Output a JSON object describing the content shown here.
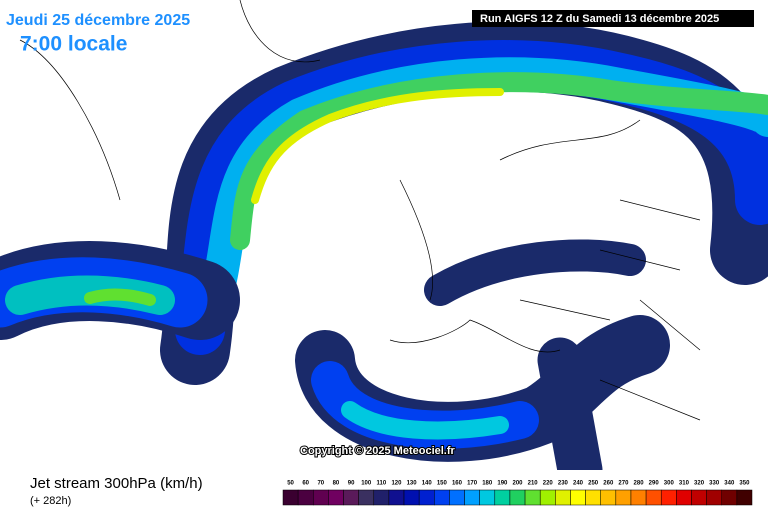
{
  "header": {
    "date": "Jeudi 25 décembre 2025",
    "time": "7:00 locale",
    "run": "Run AIGFS 12 Z du Samedi 13 décembre 2025"
  },
  "map": {
    "copyright": "Copyright © 2025 Meteociel.fr"
  },
  "footer": {
    "title": "Jet stream 300hPa (km/h)",
    "lead": "(+ 282h)"
  },
  "legend": {
    "labels": [
      50,
      60,
      70,
      80,
      90,
      100,
      110,
      120,
      130,
      140,
      150,
      160,
      170,
      180,
      190,
      200,
      210,
      220,
      230,
      240,
      250,
      260,
      270,
      280,
      290,
      300,
      310,
      320,
      330,
      340,
      350
    ],
    "colors": [
      "#3a0030",
      "#4b0040",
      "#600050",
      "#700060",
      "#5a1a5a",
      "#3a3060",
      "#20206a",
      "#101090",
      "#0010b0",
      "#0020d0",
      "#0040f0",
      "#0070ff",
      "#00a0ff",
      "#00c8e0",
      "#00d0a0",
      "#20d060",
      "#60e030",
      "#a0f000",
      "#e0f000",
      "#ffff00",
      "#ffe000",
      "#ffc000",
      "#ffa000",
      "#ff8000",
      "#ff5000",
      "#ff2000",
      "#e00000",
      "#c00000",
      "#a00000",
      "#700000",
      "#400000"
    ]
  }
}
